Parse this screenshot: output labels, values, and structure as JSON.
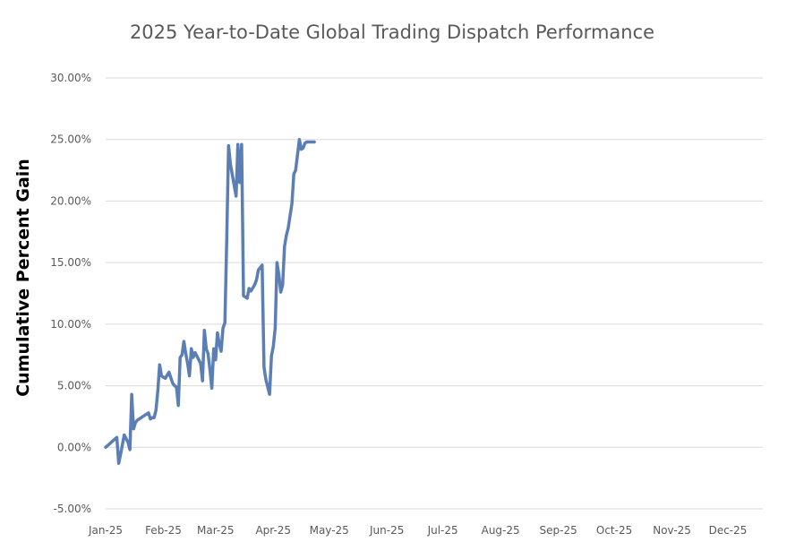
{
  "chart_data": {
    "type": "line",
    "title": "2025 Year-to-Date Global Trading Dispatch Performance",
    "xlabel": "",
    "ylabel": "Cumulative Percent Gain",
    "ylim": [
      -5,
      30
    ],
    "yticks": [
      -5,
      0,
      5,
      10,
      15,
      20,
      25,
      30
    ],
    "ytick_labels": [
      "-5.00%",
      "0.00%",
      "5.00%",
      "10.00%",
      "15.00%",
      "20.00%",
      "25.00%",
      "30.00%"
    ],
    "xlim": [
      0,
      334
    ],
    "xticks": [
      0,
      31,
      59,
      90,
      120,
      151,
      181,
      212,
      243,
      273,
      304,
      334
    ],
    "xtick_labels": [
      "Jan-25",
      "Feb-25",
      "Mar-25",
      "Apr-25",
      "May-25",
      "Jun-25",
      "Jul-25",
      "Aug-25",
      "Sep-25",
      "Oct-25",
      "Nov-25",
      "Dec-25"
    ],
    "grid": true,
    "legend": "none",
    "line_color": "#5b7fb5",
    "series": [
      {
        "name": "Cumulative Percent Gain",
        "x_unit": "day of year (0 = Jan 1)",
        "x": [
          0,
          3,
          6,
          7,
          8,
          10,
          12,
          13,
          14,
          15,
          16,
          17,
          20,
          23,
          24,
          25,
          26,
          27,
          28,
          29,
          30,
          31,
          32,
          34,
          36,
          37,
          38,
          39,
          40,
          41,
          42,
          43,
          44,
          45,
          46,
          47,
          48,
          49,
          50,
          51,
          52,
          53,
          54,
          55,
          56,
          57,
          58,
          59,
          60,
          61,
          62,
          63,
          64,
          65,
          66,
          67,
          70,
          71,
          72,
          73,
          74,
          75,
          76,
          77,
          78,
          80,
          81,
          82,
          84,
          85,
          86,
          88,
          89,
          90,
          91,
          92,
          93,
          94,
          95,
          96,
          97,
          98,
          99,
          100,
          101,
          102,
          104,
          105,
          106,
          107,
          108,
          109,
          110,
          111,
          112
        ],
        "y": [
          0.0,
          0.4,
          0.8,
          -1.3,
          -0.6,
          1.0,
          0.4,
          -0.2,
          4.3,
          1.5,
          2.0,
          2.2,
          2.5,
          2.8,
          2.3,
          2.4,
          2.4,
          3.0,
          4.6,
          6.7,
          5.8,
          5.7,
          5.6,
          6.1,
          5.2,
          5.0,
          4.9,
          3.4,
          7.3,
          7.5,
          8.6,
          7.6,
          6.8,
          5.8,
          8.0,
          7.3,
          7.7,
          7.4,
          7.1,
          6.8,
          5.4,
          9.5,
          8.0,
          7.6,
          6.3,
          4.8,
          8.0,
          7.1,
          9.3,
          8.4,
          7.8,
          9.7,
          10.1,
          17.0,
          24.5,
          23.0,
          20.4,
          24.6,
          21.5,
          24.6,
          12.3,
          12.2,
          12.1,
          12.9,
          12.7,
          13.2,
          13.6,
          14.4,
          14.8,
          6.5,
          5.5,
          4.3,
          7.4,
          8.2,
          9.7,
          15.0,
          14.0,
          12.6,
          13.2,
          16.3,
          17.2,
          17.8,
          18.8,
          19.8,
          22.2,
          22.5,
          25.0,
          24.2,
          24.3,
          24.7,
          24.8,
          24.8,
          24.8,
          24.8,
          24.8
        ]
      }
    ]
  }
}
